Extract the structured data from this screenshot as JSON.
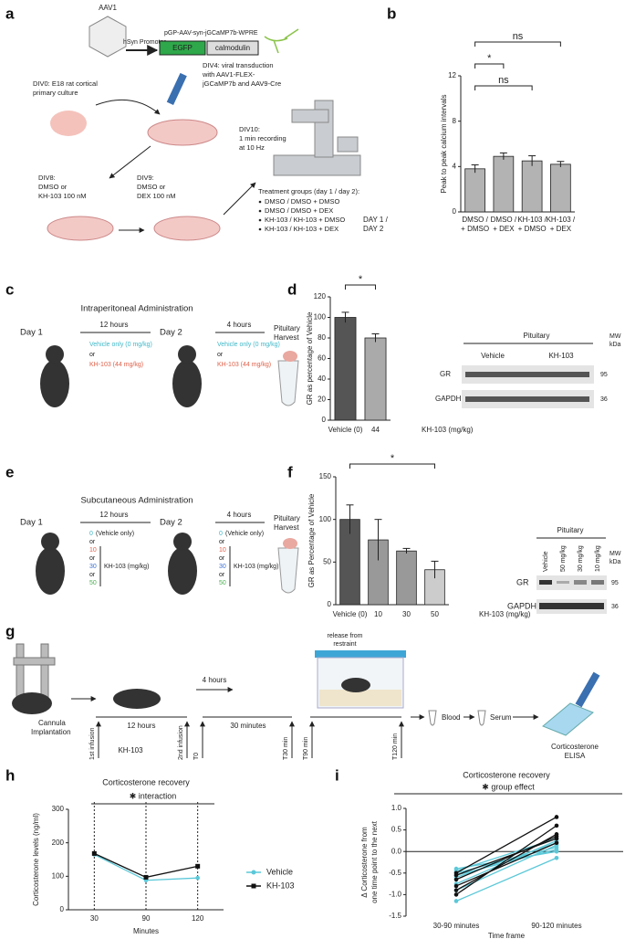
{
  "panels": {
    "labels": [
      "a",
      "b",
      "c",
      "d",
      "e",
      "f",
      "g",
      "h",
      "i"
    ],
    "a": {
      "aav": "AAV1",
      "promoter": "hSyn Promoter",
      "plasmid": "pGP-AAV-syn-jGCaMP7b-WPRE",
      "egfp": "EGFP",
      "calmodulin": "calmodulin",
      "div0": [
        "DIV0: E18 rat cortical",
        "primary culture"
      ],
      "div4": [
        "DIV4: viral transduction",
        "with AAV1-FLEX-",
        "jGCaMP7b and AAV9-Cre"
      ],
      "div10": [
        "DIV10:",
        "1 min recording",
        "at 10 Hz"
      ],
      "div8": [
        "DIV8:",
        "DMSO or",
        "KH-103 100 nM"
      ],
      "div9": [
        "DIV9:",
        "DMSO or",
        "DEX 100 nM"
      ],
      "treatment_title": "Treatment groups (day 1 / day 2):",
      "treatments": [
        "DMSO / DMSO + DMSO",
        "DMSO / DMSO + DEX",
        "KH-103 / KH-103 + DMSO",
        "KH-103 / KH-103 + DEX"
      ]
    },
    "c": {
      "title": "Intraperitoneal Administration",
      "day1": "Day 1",
      "interval1": "12 hours",
      "day2": "Day 2",
      "interval2": "4 hours",
      "vehicle": "Vehicle only (0 mg/kg)",
      "or": "or",
      "drug": "KH-103 (44 mg/kg)",
      "harvest": [
        "Pituitary",
        "Harvest"
      ]
    },
    "d_blot": {
      "tissue": "Pituitary",
      "groups": [
        "Vehicle",
        "KH-103"
      ],
      "mw": [
        "MW",
        "kDa"
      ],
      "bands": [
        "GR",
        "GAPDH"
      ],
      "sizes": [
        "95",
        "36"
      ]
    },
    "e": {
      "title": "Subcutaneous Administration",
      "day1": "Day 1",
      "interval1": "12 hours",
      "day2": "Day 2",
      "interval2": "4 hours",
      "doses": [
        "0",
        "10",
        "30",
        "50"
      ],
      "vehicle_note": "(Vehicle only)",
      "or": "or",
      "unit": "KH-103 (mg/kg)",
      "harvest": [
        "Pituitary",
        "Harvest"
      ]
    },
    "f_blot": {
      "tissue": "Pituitary",
      "lanes": [
        "Vehicle",
        "50 mg/kg",
        "30 mg/kg",
        "10 mg/kg"
      ],
      "mw": [
        "MW",
        "kDa"
      ],
      "bands": [
        "GR",
        "GAPDH"
      ],
      "sizes": [
        "95",
        "36"
      ]
    },
    "g": {
      "implantation": [
        "Cannula",
        "Implantation"
      ],
      "infusion1": "1st infusion",
      "interval1": "12 hours",
      "drug": "KH-103",
      "infusion2": "2nd infusion",
      "interval2": "4 hours",
      "t0": "T0",
      "interval3": "30 minutes",
      "t30": "T30 min",
      "release": [
        "release from",
        "restraint"
      ],
      "t90": "T90 min",
      "t120": "T120 min",
      "blood": "Blood",
      "serum": "Serum",
      "elisa": [
        "Corticosterone",
        "ELISA"
      ]
    }
  },
  "chart_data": [
    {
      "type": "bar",
      "ylabel": "Peak to peak calcium intervals",
      "row_label": [
        "DAY 1 /",
        "DAY 2"
      ],
      "categories": [
        [
          "DMSO /",
          "+ DMSO"
        ],
        [
          "DMSO /",
          "+ DEX"
        ],
        [
          "KH-103 /",
          "+ DMSO"
        ],
        [
          "KH-103 /",
          "+ DEX"
        ]
      ],
      "values": [
        3.8,
        4.9,
        4.5,
        4.2
      ],
      "errors": [
        0.35,
        0.3,
        0.45,
        0.25
      ],
      "color": "#b3b3b3",
      "ylim": [
        0,
        12
      ],
      "yticks": [
        0,
        4,
        8,
        12
      ],
      "annotations": [
        "ns",
        "*",
        "ns"
      ]
    },
    {
      "type": "bar",
      "ylabel": "GR as percentage of Vehicle",
      "xlabel": "KH-103 (mg/kg)",
      "categories": [
        "Vehicle (0)",
        "44"
      ],
      "values": [
        100,
        80
      ],
      "errors": [
        5,
        4
      ],
      "colors": [
        "#555555",
        "#aaaaaa"
      ],
      "ylim": [
        0,
        120
      ],
      "yticks": [
        0,
        20,
        40,
        60,
        80,
        100,
        120
      ],
      "annotations": [
        "*"
      ]
    },
    {
      "type": "bar",
      "ylabel": "GR as Percentage of Vehicle",
      "xlabel": "KH-103 (mg/kg)",
      "categories": [
        "Vehicle (0)",
        "10",
        "30",
        "50"
      ],
      "values": [
        100,
        76,
        63,
        41
      ],
      "errors": [
        17,
        24,
        3,
        10
      ],
      "colors": [
        "#555555",
        "#999999",
        "#999999",
        "#cccccc"
      ],
      "ylim": [
        0,
        150
      ],
      "yticks": [
        0,
        50,
        100,
        150
      ],
      "annotations": [
        "*"
      ]
    },
    {
      "type": "line",
      "title": "Corticosterone recovery",
      "ylabel": "Corticosterone levels (ng/ml)",
      "xlabel": "Minutes",
      "annotation": "✱ interaction",
      "categories": [
        "30",
        "90",
        "120"
      ],
      "series": [
        {
          "name": "Vehicle",
          "color": "#5bc8d8",
          "values": [
            165,
            88,
            95
          ]
        },
        {
          "name": "KH-103",
          "color": "#111111",
          "values": [
            168,
            97,
            130
          ]
        }
      ],
      "ylim": [
        0,
        300
      ],
      "yticks": [
        0,
        100,
        200,
        300
      ],
      "legend": "right"
    },
    {
      "type": "line",
      "title": "Corticosterone recovery",
      "ylabel": [
        "Δ Corticosterone from",
        "one time point to the next"
      ],
      "xlabel": "Time frame",
      "annotation": "✱ group effect",
      "categories": [
        "30-90 minutes",
        "90-120 minutes"
      ],
      "series": [
        {
          "color": "#5bc8d8",
          "values": [
            -0.45,
            0.3
          ]
        },
        {
          "color": "#5bc8d8",
          "values": [
            -0.5,
            0.1
          ]
        },
        {
          "color": "#5bc8d8",
          "values": [
            -0.6,
            0.2
          ]
        },
        {
          "color": "#5bc8d8",
          "values": [
            -0.4,
            0.0
          ]
        },
        {
          "color": "#5bc8d8",
          "values": [
            -0.75,
            0.25
          ]
        },
        {
          "color": "#5bc8d8",
          "values": [
            -0.9,
            0.15
          ]
        },
        {
          "color": "#5bc8d8",
          "values": [
            -1.15,
            -0.15
          ]
        },
        {
          "color": "#5bc8d8",
          "values": [
            -0.55,
            0.05
          ]
        },
        {
          "color": "#111111",
          "values": [
            -0.5,
            0.8
          ]
        },
        {
          "color": "#111111",
          "values": [
            -1.0,
            0.6
          ]
        },
        {
          "color": "#111111",
          "values": [
            -0.65,
            0.35
          ]
        },
        {
          "color": "#111111",
          "values": [
            -0.9,
            0.4
          ]
        },
        {
          "color": "#111111",
          "values": [
            -0.8,
            0.2
          ]
        },
        {
          "color": "#111111",
          "values": [
            -0.55,
            0.3
          ]
        }
      ],
      "ylim": [
        -1.5,
        1.0
      ],
      "yticks": [
        -1.5,
        {
          "value": -1,
          "label": "-1.0"
        },
        -0.5,
        {
          "value": 0,
          "label": "0.0"
        },
        0.5,
        {
          "value": 1,
          "label": "1.0"
        }
      ],
      "zero_line": true
    }
  ]
}
